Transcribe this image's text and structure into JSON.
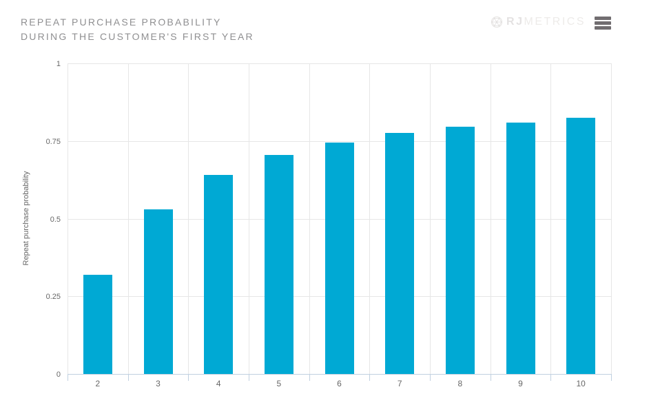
{
  "header": {
    "title_line1": "REPEAT PURCHASE PROBABILITY",
    "title_line2": "DURING THE CUSTOMER'S FIRST YEAR",
    "logo": {
      "icon": "rjmetrics-globe-icon",
      "brand_bold": "RJ",
      "brand_light": "METRICS"
    },
    "menu_icon": "hamburger-menu-icon"
  },
  "chart_data": {
    "type": "bar",
    "title": "Repeat purchase probability during the customer's first year",
    "categories": [
      "2",
      "3",
      "4",
      "5",
      "6",
      "7",
      "8",
      "9",
      "10"
    ],
    "values": [
      0.32,
      0.53,
      0.64,
      0.705,
      0.745,
      0.775,
      0.795,
      0.81,
      0.825
    ],
    "xlabel": "",
    "ylabel": "Repeat purchase probability",
    "ylim": [
      0,
      1
    ],
    "yticks": [
      0,
      0.25,
      0.5,
      0.75,
      1
    ],
    "ytick_labels": [
      "0",
      "0.25",
      "0.5",
      "0.75",
      "1"
    ],
    "grid": true,
    "legend": "none",
    "bar_color": "#00a9d4",
    "axis_line_color": "#c0d0e0",
    "grid_color": "#e6e6e6",
    "title_color": "#8f8f91",
    "label_color": "#666666"
  }
}
